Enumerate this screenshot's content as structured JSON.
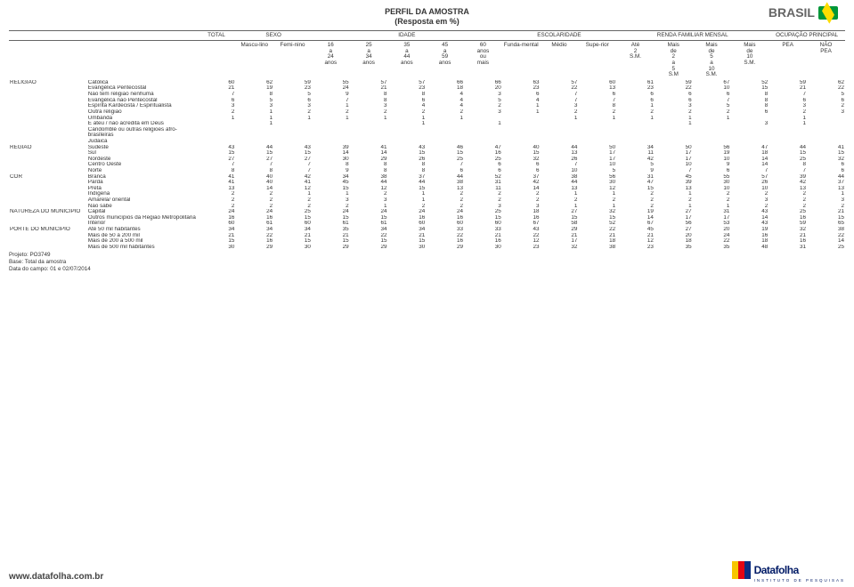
{
  "header": {
    "title1": "PERFIL DA AMOSTRA",
    "title2": "(Resposta em %)",
    "brasil": "BRASIL"
  },
  "groupHeaders": {
    "total": "TOTAL",
    "sexo": "SEXO",
    "idade": "IDADE",
    "escolaridade": "ESCOLARIDADE",
    "renda": "RENDA FAMILIAR MENSAL",
    "ocup": "OCUPAÇÃO PRINCIPAL"
  },
  "colHeaders": [
    "",
    "",
    "",
    "Mascu-lino",
    "Femi-nino",
    "16 a 24 anos",
    "25 a 34 anos",
    "35 a 44 anos",
    "45 a 59 anos",
    "60 anos ou mais",
    "Funda-mental",
    "Médio",
    "Supe-rior",
    "Até 2 S.M.",
    "Mais de 2 a 5 S.M",
    "Mais de 5 a 10 S.M.",
    "Mais de 10 S.M.",
    "PEA",
    "NÃO PEA"
  ],
  "categories": [
    {
      "label": "RELIGIÃO",
      "rows": [
        {
          "sub": "Católica",
          "v": [
            60,
            62,
            59,
            55,
            57,
            57,
            66,
            66,
            63,
            57,
            60,
            61,
            59,
            67,
            52,
            59,
            62
          ]
        },
        {
          "sub": "Evangélica Pentecostal",
          "v": [
            21,
            19,
            23,
            24,
            21,
            23,
            18,
            20,
            23,
            22,
            13,
            23,
            22,
            10,
            15,
            21,
            22
          ]
        },
        {
          "sub": "Não tem religião nenhuma",
          "v": [
            7,
            8,
            5,
            9,
            8,
            8,
            4,
            3,
            6,
            7,
            6,
            6,
            6,
            6,
            8,
            7,
            5
          ]
        },
        {
          "sub": "Evangélica não Pentecostal",
          "v": [
            6,
            5,
            6,
            7,
            8,
            6,
            4,
            5,
            4,
            7,
            7,
            6,
            6,
            7,
            8,
            6,
            6
          ]
        },
        {
          "sub": "Espírita Kardecista / Espiritualista",
          "v": [
            3,
            3,
            3,
            1,
            3,
            4,
            4,
            2,
            1,
            3,
            8,
            1,
            3,
            5,
            8,
            3,
            2
          ]
        },
        {
          "sub": "Outra religião",
          "v": [
            2,
            1,
            2,
            2,
            2,
            2,
            2,
            3,
            1,
            2,
            2,
            2,
            2,
            2,
            6,
            2,
            3
          ]
        },
        {
          "sub": "Umbanda",
          "v": [
            1,
            1,
            1,
            1,
            1,
            1,
            1,
            "",
            "",
            1,
            1,
            1,
            1,
            1,
            "",
            1,
            ""
          ]
        },
        {
          "sub": "É ateu / não acredita em Deus",
          "v": [
            "",
            1,
            "",
            "",
            "",
            1,
            "",
            1,
            "",
            "",
            "",
            "",
            1,
            "",
            3,
            1,
            ""
          ]
        },
        {
          "sub": "Candomblé ou outras religiões afro-brasileiras",
          "v": [
            "",
            "",
            "",
            "",
            "",
            "",
            "",
            "",
            "",
            "",
            "",
            "",
            "",
            "",
            "",
            "",
            ""
          ]
        },
        {
          "sub": "Judaica",
          "v": [
            "",
            "",
            "",
            "",
            "",
            "",
            "",
            "",
            "",
            "",
            "",
            "",
            "",
            "",
            "",
            "",
            ""
          ]
        }
      ]
    },
    {
      "label": "REGIÃO",
      "rows": [
        {
          "sub": "Sudeste",
          "v": [
            43,
            44,
            43,
            39,
            41,
            43,
            46,
            47,
            40,
            44,
            50,
            34,
            50,
            56,
            47,
            44,
            41
          ]
        },
        {
          "sub": "Sul",
          "v": [
            15,
            15,
            15,
            14,
            14,
            15,
            15,
            16,
            15,
            13,
            17,
            11,
            17,
            19,
            18,
            15,
            15
          ]
        },
        {
          "sub": "Nordeste",
          "v": [
            27,
            27,
            27,
            30,
            29,
            26,
            25,
            25,
            32,
            26,
            17,
            42,
            17,
            10,
            14,
            25,
            32
          ]
        },
        {
          "sub": "Centro Oeste",
          "v": [
            7,
            7,
            7,
            8,
            8,
            8,
            7,
            6,
            6,
            7,
            10,
            5,
            10,
            9,
            14,
            8,
            6
          ]
        },
        {
          "sub": "Norte",
          "v": [
            8,
            8,
            7,
            9,
            8,
            8,
            6,
            6,
            6,
            10,
            5,
            9,
            7,
            6,
            7,
            7,
            6
          ]
        }
      ]
    },
    {
      "label": "COR",
      "rows": [
        {
          "sub": "Branca",
          "v": [
            41,
            40,
            42,
            34,
            38,
            37,
            44,
            52,
            37,
            38,
            56,
            31,
            45,
            55,
            57,
            39,
            44
          ]
        },
        {
          "sub": "Parda",
          "v": [
            41,
            40,
            41,
            45,
            44,
            44,
            38,
            31,
            42,
            44,
            30,
            47,
            39,
            30,
            26,
            42,
            37
          ]
        },
        {
          "sub": "Preta",
          "v": [
            13,
            14,
            12,
            15,
            12,
            15,
            13,
            11,
            14,
            13,
            12,
            15,
            13,
            10,
            10,
            13,
            13
          ]
        },
        {
          "sub": "Indígena",
          "v": [
            2,
            2,
            1,
            1,
            2,
            1,
            2,
            2,
            2,
            1,
            1,
            2,
            1,
            2,
            2,
            2,
            1
          ]
        },
        {
          "sub": "Amarela/ oriental",
          "v": [
            2,
            2,
            2,
            3,
            3,
            1,
            2,
            2,
            2,
            2,
            2,
            2,
            2,
            2,
            3,
            2,
            3
          ]
        },
        {
          "sub": "Não sabe",
          "v": [
            2,
            2,
            2,
            2,
            1,
            2,
            2,
            3,
            3,
            1,
            1,
            2,
            1,
            1,
            2,
            2,
            2
          ]
        }
      ]
    },
    {
      "label": "NATUREZA DO MUNICÍPIO",
      "rows": [
        {
          "sub": "Capital",
          "v": [
            24,
            24,
            25,
            24,
            24,
            24,
            24,
            25,
            18,
            27,
            32,
            19,
            27,
            31,
            43,
            25,
            21
          ]
        },
        {
          "sub": "Outros municípios da Região Metropolitana",
          "v": [
            16,
            16,
            15,
            15,
            15,
            16,
            16,
            15,
            16,
            15,
            15,
            14,
            17,
            17,
            14,
            16,
            15
          ]
        },
        {
          "sub": "Interior",
          "v": [
            60,
            61,
            60,
            61,
            61,
            60,
            60,
            60,
            67,
            58,
            52,
            67,
            56,
            53,
            43,
            59,
            65
          ]
        }
      ]
    },
    {
      "label": "PORTE DO MUNICÍPIO",
      "rows": [
        {
          "sub": "Até 50 mil habitantes",
          "v": [
            34,
            34,
            34,
            35,
            34,
            34,
            33,
            33,
            43,
            29,
            22,
            45,
            27,
            20,
            19,
            32,
            38
          ]
        },
        {
          "sub": "Mais de 50 a 200 mil",
          "v": [
            21,
            22,
            21,
            21,
            22,
            21,
            22,
            21,
            22,
            21,
            21,
            21,
            20,
            24,
            16,
            21,
            22
          ]
        },
        {
          "sub": "Mais de 200 a 500 mil",
          "v": [
            15,
            16,
            15,
            15,
            15,
            15,
            16,
            16,
            12,
            17,
            18,
            12,
            18,
            22,
            18,
            16,
            14
          ]
        },
        {
          "sub": "Mais de 500 mil habitantes",
          "v": [
            30,
            29,
            30,
            29,
            29,
            30,
            29,
            30,
            23,
            32,
            38,
            23,
            35,
            35,
            48,
            31,
            25
          ]
        }
      ]
    }
  ],
  "meta": {
    "l1": "Projeto: PO3749",
    "l2": "Base: Total da amostra",
    "l3": "Data do campo: 01 e 02/07/2014"
  },
  "footer": {
    "url": "www.datafolha.com.br",
    "brand": "Datafolha",
    "tag": "INSTITUTO DE PESQUISAS",
    "bars": [
      "#f7c600",
      "#e30613",
      "#0b2e82"
    ]
  }
}
